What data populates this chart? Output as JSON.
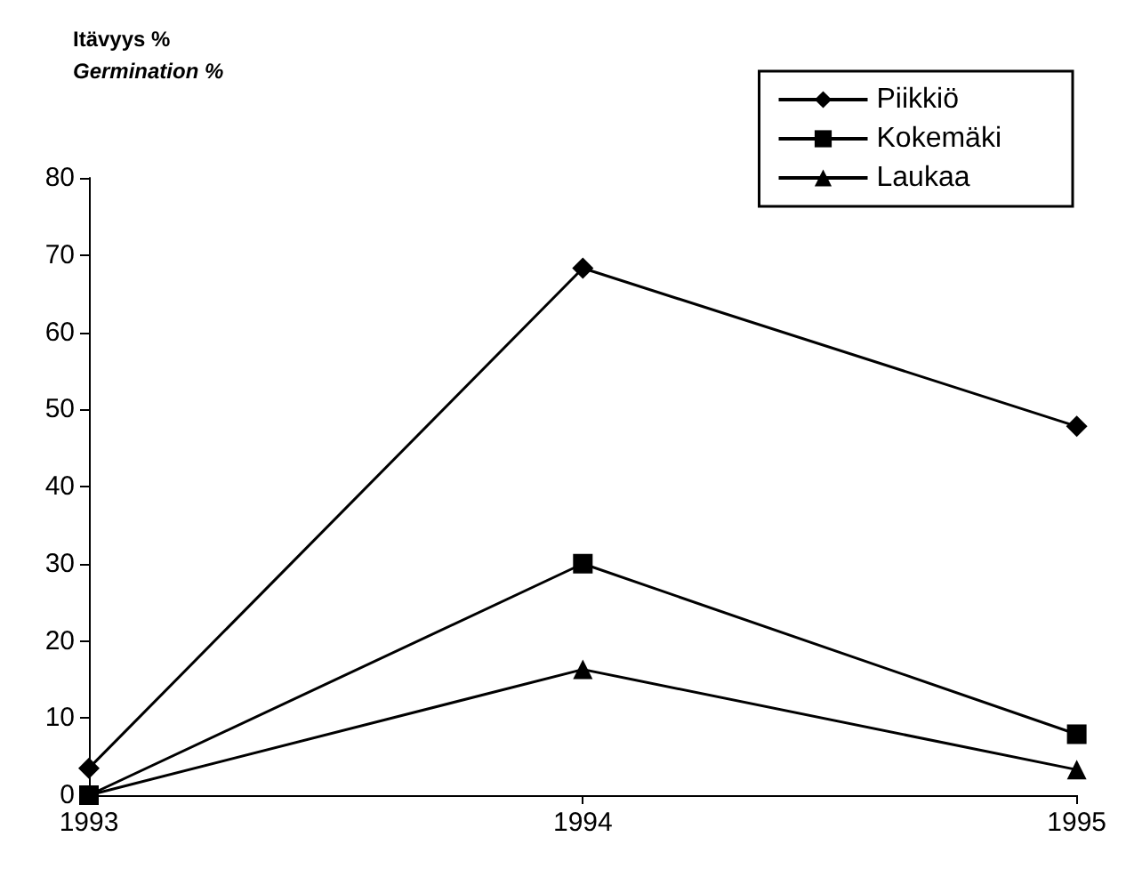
{
  "chart_data": {
    "type": "line",
    "ylabel": "Itävyys %\nGermination %",
    "x": [
      1993,
      1994,
      1995
    ],
    "xlim": [
      1993,
      1995
    ],
    "xticks": [
      1993,
      1994,
      1995
    ],
    "ylim": [
      0,
      80
    ],
    "yticks": [
      0,
      10,
      20,
      30,
      40,
      50,
      60,
      70,
      80
    ],
    "grid": false,
    "legend": "top right",
    "line_style": "solid",
    "series": [
      {
        "name": "Piikkiö",
        "color": "#000000",
        "marker": "diamond",
        "values": [
          3.5,
          68.3,
          47.8
        ]
      },
      {
        "name": "Kokemäki",
        "color": "#000000",
        "marker": "square",
        "values": [
          0,
          30,
          7.9
        ]
      },
      {
        "name": "Laukaa",
        "color": "#000000",
        "marker": "triangle",
        "values": [
          0,
          16.3,
          3.3
        ]
      }
    ]
  }
}
